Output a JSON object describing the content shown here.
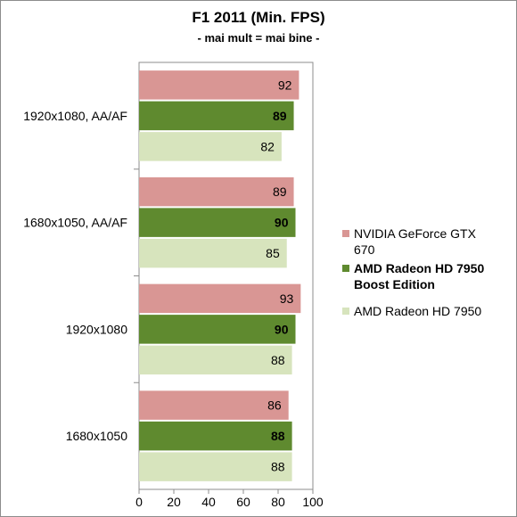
{
  "chart_data": {
    "type": "bar",
    "orientation": "horizontal",
    "title": "F1 2011 (Min. FPS)",
    "subtitle": "- mai mult = mai bine -",
    "categories": [
      "1920x1080, AA/AF",
      "1680x1050, AA/AF",
      "1920x1080",
      "1680x1050"
    ],
    "series": [
      {
        "name": "NVIDIA GeForce GTX 670",
        "legend_lines": [
          "NVIDIA GeForce GTX",
          "670"
        ],
        "color": "#d99694",
        "bold": false,
        "values": [
          92,
          89,
          93,
          86
        ]
      },
      {
        "name": "AMD Radeon HD 7950 Boost Edition",
        "legend_lines": [
          "AMD Radeon HD 7950",
          "Boost Edition"
        ],
        "color": "#5f8a2f",
        "bold": true,
        "values": [
          89,
          90,
          90,
          88
        ]
      },
      {
        "name": "AMD Radeon HD 7950",
        "legend_lines": [
          "AMD Radeon HD 7950"
        ],
        "color": "#d7e4bd",
        "bold": false,
        "values": [
          82,
          85,
          88,
          88
        ]
      }
    ],
    "xlim": [
      0,
      100
    ],
    "xticks": [
      0,
      20,
      40,
      60,
      80,
      100
    ],
    "grid": false,
    "legend_position": "right"
  }
}
